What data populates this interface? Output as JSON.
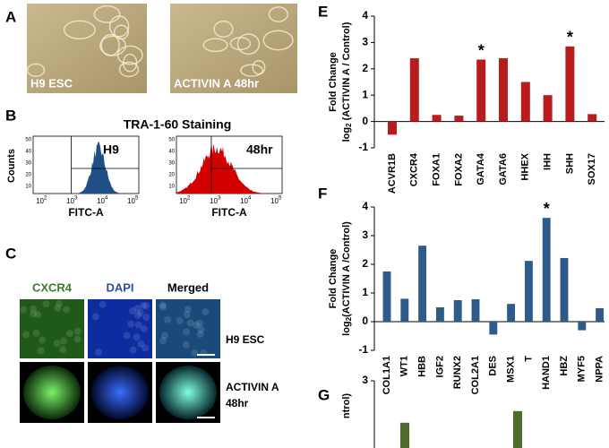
{
  "panel_labels": [
    "A",
    "B",
    "C",
    "E",
    "F",
    "G"
  ],
  "panel_a": {
    "labels": [
      "H9 ESC",
      "ACTIVIN A 48hr"
    ]
  },
  "panel_b": {
    "title": "TRA-1-60 Staining",
    "y_label": "Counts",
    "x_label": "FITC-A",
    "plots": [
      {
        "label": "H9",
        "color": "#1f4f86"
      },
      {
        "label": "48hr",
        "color": "#d40000"
      }
    ],
    "xtick_base": "10",
    "xtick_exps": [
      "2",
      "3",
      "4",
      "5"
    ],
    "ytick_texts": [
      "50",
      "40",
      "30",
      "20",
      "10"
    ]
  },
  "panel_c": {
    "columns": [
      {
        "text": "CXCR4",
        "color": "#3f7a2a"
      },
      {
        "text": "DAPI",
        "color": "#2b4fa0"
      },
      {
        "text": "Merged",
        "color": "#000000"
      }
    ],
    "rows": [
      [
        "H9 ESC"
      ],
      [
        "ACTIVIN A",
        "48hr"
      ]
    ]
  },
  "chart_data": [
    {
      "type": "bar",
      "color": "#b81c1c",
      "y_label": {
        "line1": "Fold Change",
        "pre": "log",
        "sub": "2",
        "post": " (ACTIVIN A / Control)"
      },
      "categories": [
        "ACVR1B",
        "CXCR4",
        "FOXA1",
        "FOXA2",
        "GATA4",
        "GATA6",
        "HHEX",
        "IHH",
        "SHH",
        "SOX17"
      ],
      "values": [
        -0.5,
        2.4,
        0.25,
        0.22,
        2.35,
        2.4,
        1.5,
        1.0,
        2.85,
        0.28
      ],
      "ylim": [
        -1,
        4
      ],
      "yticks": [
        -1,
        0,
        1,
        2,
        3,
        4
      ],
      "annotations": [
        {
          "text": "*",
          "category": "GATA4"
        },
        {
          "text": "*",
          "category": "SHH"
        }
      ]
    },
    {
      "type": "bar",
      "color": "#2f5b8c",
      "y_label": {
        "line1": "Fold Change",
        "pre": "log",
        "sub": "2",
        "post": "(ACTIVIN A /Control)"
      },
      "categories": [
        "COL1A1",
        "WT1",
        "HBB",
        "IGF2",
        "RUNX2",
        "COL2A1",
        "DES",
        "MSX1",
        "T",
        "HAND1",
        "HBZ",
        "MYF5",
        "NPPA"
      ],
      "values": [
        1.75,
        0.8,
        2.65,
        0.5,
        0.75,
        0.78,
        -0.45,
        0.62,
        2.12,
        3.62,
        2.22,
        -0.3,
        0.47
      ],
      "ylim": [
        -1,
        4
      ],
      "yticks": [
        -1,
        0,
        1,
        2,
        3,
        4
      ],
      "annotations": [
        {
          "text": "*",
          "category": "HAND1"
        }
      ]
    },
    {
      "type": "bar",
      "color": "#4f6b2e",
      "y_label": {
        "line1": "ntrol)"
      },
      "categories": [
        null,
        null
      ],
      "values": [
        1.2,
        1.7
      ],
      "ylim": [
        0,
        3
      ],
      "yticks": [
        3
      ]
    }
  ]
}
